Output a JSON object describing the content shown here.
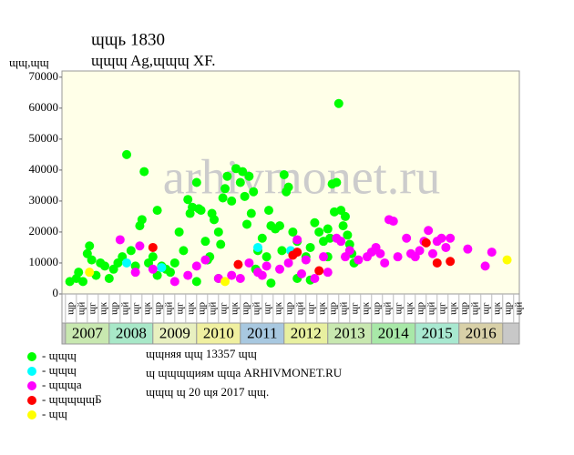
{
  "chart_data": {
    "type": "scatter",
    "title": "ɰɰь 1830",
    "subtitle": "ɰɰɰ Ag,ɰɰɰ XF.",
    "y_label": "ɰɰ,ɰɰ",
    "watermark": "arhivmonet.ru",
    "notes": [
      "ɰɰняя ɰɰ 13357 ɰɰ",
      "ɰ ɰɰɰɰиям ɰɰа ARHIVMONET.RU",
      "ɰɰɰ ɰ 20 ɰя 2017 ɰɰ."
    ],
    "quarter_labels": [
      "ɰр",
      "ɰй",
      "ɰг",
      "ɰк"
    ],
    "years": [
      2007,
      2008,
      2009,
      2010,
      2011,
      2012,
      2013,
      2014,
      2015,
      2016
    ],
    "year_colors": [
      "#c8e8b0",
      "#a8e8c8",
      "#e8f0c0",
      "#f0f0a0",
      "#a8c8e0",
      "#e8f0a0",
      "#c8e8b0",
      "#a8e8a8",
      "#a8e8d0",
      "#d8d0a8"
    ],
    "background": "#ffffe8",
    "xlim": [
      2006.92,
      2017.38
    ],
    "ylim": [
      0,
      72000
    ],
    "yticks": [
      0,
      10000,
      20000,
      30000,
      40000,
      50000,
      60000,
      70000
    ],
    "series": [
      {
        "name": "- ɰɰɰ",
        "color": "#00ff00",
        "x": [
          2007.1,
          2007.25,
          2007.3,
          2007.4,
          2007.5,
          2007.55,
          2007.6,
          2007.7,
          2007.8,
          2007.9,
          2008.0,
          2008.1,
          2008.2,
          2008.3,
          2008.4,
          2008.5,
          2008.6,
          2008.7,
          2008.75,
          2008.8,
          2008.9,
          2009.0,
          2009.1,
          2009.2,
          2009.3,
          2009.5,
          2009.6,
          2009.7,
          2009.8,
          2009.85,
          2009.9,
          2010.0,
          2010.05,
          2010.1,
          2010.2,
          2010.3,
          2010.35,
          2010.4,
          2010.5,
          2010.55,
          2010.6,
          2010.65,
          2010.7,
          2010.8,
          2010.9,
          2011.0,
          2011.05,
          2011.1,
          2011.15,
          2011.2,
          2011.25,
          2011.3,
          2011.4,
          2011.5,
          2011.6,
          2011.65,
          2011.7,
          2011.8,
          2011.9,
          2011.95,
          2012.0,
          2012.05,
          2012.1,
          2012.2,
          2012.3,
          2012.5,
          2012.6,
          2012.7,
          2012.8,
          2012.9,
          2013.0,
          2013.05,
          2013.1,
          2013.15,
          2013.2,
          2013.25,
          2013.3,
          2013.35,
          2013.4,
          2013.45,
          2013.5,
          2013.55,
          2013.6,
          2009.1,
          2010.0,
          2010.5,
          2011.7,
          2012.3,
          2012.6,
          2013.0,
          2010.25,
          2011.35,
          2009.4
        ],
        "values": [
          4000,
          5000,
          7000,
          4000,
          13000,
          15500,
          11000,
          6000,
          10000,
          9000,
          5000,
          8000,
          10000,
          12000,
          45000,
          14000,
          9000,
          22000,
          24000,
          39500,
          10000,
          12000,
          27000,
          9000,
          8000,
          10000,
          20000,
          14000,
          30500,
          26000,
          28000,
          36000,
          27500,
          27000,
          17000,
          12000,
          26000,
          24000,
          20000,
          16000,
          31000,
          34000,
          38000,
          30000,
          40500,
          36000,
          39500,
          31500,
          22500,
          38000,
          26000,
          33000,
          14000,
          18000,
          12000,
          27000,
          22000,
          21000,
          22000,
          14000,
          38500,
          33000,
          34500,
          20000,
          17000,
          12000,
          15000,
          23000,
          20000,
          17000,
          21000,
          18000,
          35500,
          26500,
          36000,
          61500,
          27000,
          22000,
          25000,
          19000,
          16000,
          13000,
          10000,
          6000,
          4000,
          5000,
          3500,
          5000,
          4500,
          12000,
          11000,
          8000,
          7000
        ]
      },
      {
        "name": "- ɰɰɰ",
        "color": "#00ffff",
        "x": [
          2008.4,
          2009.2,
          2011.4,
          2012.15
        ],
        "values": [
          10000,
          8500,
          15000,
          14000
        ]
      },
      {
        "name": "- ɰɰɰа",
        "color": "#ff00ff",
        "x": [
          2008.25,
          2008.7,
          2009.5,
          2009.8,
          2010.0,
          2010.2,
          2010.5,
          2010.8,
          2011.0,
          2011.2,
          2011.4,
          2011.6,
          2011.9,
          2012.1,
          2012.3,
          2012.5,
          2012.7,
          2012.9,
          2013.0,
          2013.2,
          2013.3,
          2013.4,
          2013.5,
          2013.7,
          2013.9,
          2014.0,
          2014.1,
          2014.2,
          2014.3,
          2014.4,
          2014.5,
          2014.6,
          2014.8,
          2014.9,
          2015.0,
          2015.1,
          2015.2,
          2015.3,
          2015.4,
          2015.5,
          2015.6,
          2015.7,
          2015.8,
          2016.2,
          2016.6,
          2016.75,
          2009.0,
          2008.6,
          2011.5,
          2012.4
        ],
        "values": [
          17500,
          15500,
          4000,
          6000,
          9000,
          11000,
          5000,
          6000,
          5000,
          10000,
          7000,
          9000,
          8000,
          10000,
          17500,
          11000,
          5000,
          12000,
          7000,
          18000,
          17000,
          12000,
          14000,
          11000,
          12000,
          13500,
          15000,
          13000,
          10000,
          24000,
          23500,
          12000,
          18000,
          13000,
          12000,
          14000,
          17000,
          20500,
          13000,
          17000,
          18000,
          15000,
          18000,
          14500,
          9000,
          13500,
          8000,
          7000,
          6000,
          6500
        ]
      },
      {
        "name": "- ɰɰɰɰɰБ",
        "color": "#ff0000",
        "x": [
          2009.0,
          2010.95,
          2012.2,
          2012.3,
          2012.8,
          2015.25,
          2015.5,
          2015.8
        ],
        "values": [
          15000,
          9500,
          12500,
          13500,
          7500,
          16500,
          10000,
          10500
        ]
      },
      {
        "name": "- ɰɰ",
        "color": "#ffff00",
        "x": [
          2007.55,
          2010.65,
          2017.1
        ],
        "values": [
          7000,
          4000,
          11000
        ]
      }
    ]
  }
}
